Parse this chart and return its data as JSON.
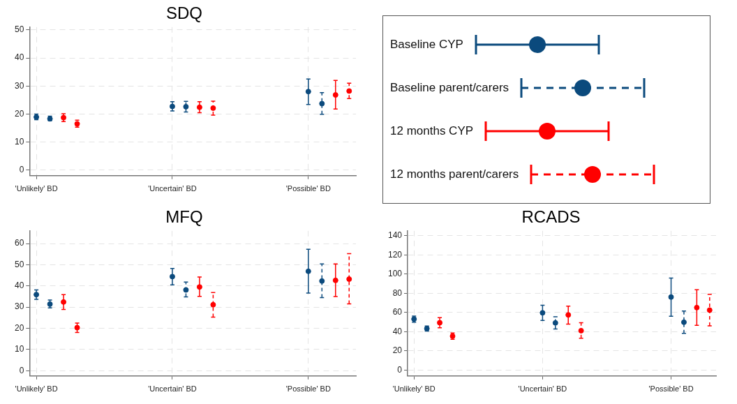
{
  "chart_data": [
    {
      "type": "scatter",
      "title": "SDQ",
      "categories": [
        "'Unlikely' BD",
        "'Uncertain' BD",
        "'Possible' BD"
      ],
      "ylim": [
        -2,
        51
      ],
      "yticks": [
        0,
        10,
        20,
        30,
        40,
        50
      ],
      "grid": true,
      "marker": "circle",
      "legend": "right",
      "series": [
        {
          "name": "Baseline CYP",
          "color": "#0b4a7d",
          "line_style": "solid",
          "values": [
            18.9,
            22.7,
            28.0
          ],
          "errors": [
            [
              18.0,
              20.0
            ],
            [
              21.1,
              24.4
            ],
            [
              23.4,
              32.5
            ]
          ]
        },
        {
          "name": "Baseline parent/carers",
          "color": "#0b4a7d",
          "line_style": "dashed",
          "values": [
            18.3,
            22.6,
            23.7
          ],
          "errors": [
            [
              17.6,
              19.2
            ],
            [
              20.7,
              24.5
            ],
            [
              19.9,
              27.6
            ]
          ]
        },
        {
          "name": "12 months CYP",
          "color": "#ff0000",
          "line_style": "solid",
          "values": [
            18.7,
            22.4,
            26.8
          ],
          "errors": [
            [
              17.3,
              20.1
            ],
            [
              20.5,
              24.4
            ],
            [
              21.8,
              32.0
            ]
          ]
        },
        {
          "name": "12 months parent/carers",
          "color": "#ff0000",
          "line_style": "dashed",
          "values": [
            16.5,
            22.1,
            28.2
          ],
          "errors": [
            [
              15.3,
              17.8
            ],
            [
              19.6,
              24.6
            ],
            [
              25.5,
              31.0
            ]
          ]
        }
      ]
    },
    {
      "type": "scatter",
      "title": "MFQ",
      "categories": [
        "'Unlikely' BD",
        "'Uncertain' BD",
        "'Possible' BD"
      ],
      "ylim": [
        -2.5,
        66
      ],
      "yticks": [
        0,
        10,
        20,
        30,
        40,
        50,
        60
      ],
      "grid": true,
      "marker": "circle",
      "series": [
        {
          "color": "#0b4a7d",
          "line_style": "solid",
          "values": [
            35.9,
            44.4,
            46.9
          ],
          "errors": [
            [
              33.7,
              38.1
            ],
            [
              40.5,
              48.2
            ],
            [
              36.6,
              57.3
            ]
          ]
        },
        {
          "color": "#0b4a7d",
          "line_style": "dashed",
          "values": [
            31.4,
            38.1,
            42.3
          ],
          "errors": [
            [
              29.6,
              33.3
            ],
            [
              34.8,
              41.8
            ],
            [
              34.5,
              50.4
            ]
          ]
        },
        {
          "color": "#ff0000",
          "line_style": "solid",
          "values": [
            32.4,
            39.5,
            42.6
          ],
          "errors": [
            [
              28.9,
              35.9
            ],
            [
              35.1,
              44.2
            ],
            [
              35.0,
              50.4
            ]
          ]
        },
        {
          "color": "#ff0000",
          "line_style": "dashed",
          "values": [
            20.3,
            31.1,
            43.2
          ],
          "errors": [
            [
              18.0,
              22.5
            ],
            [
              25.3,
              36.9
            ],
            [
              31.5,
              55.2
            ]
          ]
        }
      ]
    },
    {
      "type": "scatter",
      "title": "RCADS",
      "categories": [
        "'Unlikely' BD",
        "'Uncertain' BD",
        "'Possible' BD"
      ],
      "ylim": [
        -6,
        145
      ],
      "yticks": [
        0,
        20,
        40,
        60,
        80,
        100,
        120,
        140
      ],
      "grid": true,
      "marker": "circle",
      "series": [
        {
          "color": "#0b4a7d",
          "line_style": "solid",
          "values": [
            53.2,
            59.7,
            76.1
          ],
          "errors": [
            [
              49.9,
              56.3
            ],
            [
              51.8,
              67.5
            ],
            [
              56.1,
              95.8
            ]
          ]
        },
        {
          "color": "#0b4a7d",
          "line_style": "dashed",
          "values": [
            43.3,
            49.2,
            49.9
          ],
          "errors": [
            [
              40.6,
              45.9
            ],
            [
              42.8,
              55.6
            ],
            [
              38.3,
              61.6
            ]
          ]
        },
        {
          "color": "#ff0000",
          "line_style": "solid",
          "values": [
            49.4,
            57.5,
            65.1
          ],
          "errors": [
            [
              44.2,
              54.7
            ],
            [
              48.0,
              66.6
            ],
            [
              46.6,
              83.7
            ]
          ]
        },
        {
          "color": "#ff0000",
          "line_style": "dashed",
          "values": [
            35.4,
            41.1,
            62.5
          ],
          "errors": [
            [
              32.1,
              38.7
            ],
            [
              33.3,
              49.4
            ],
            [
              46.1,
              78.9
            ]
          ]
        }
      ]
    }
  ]
}
